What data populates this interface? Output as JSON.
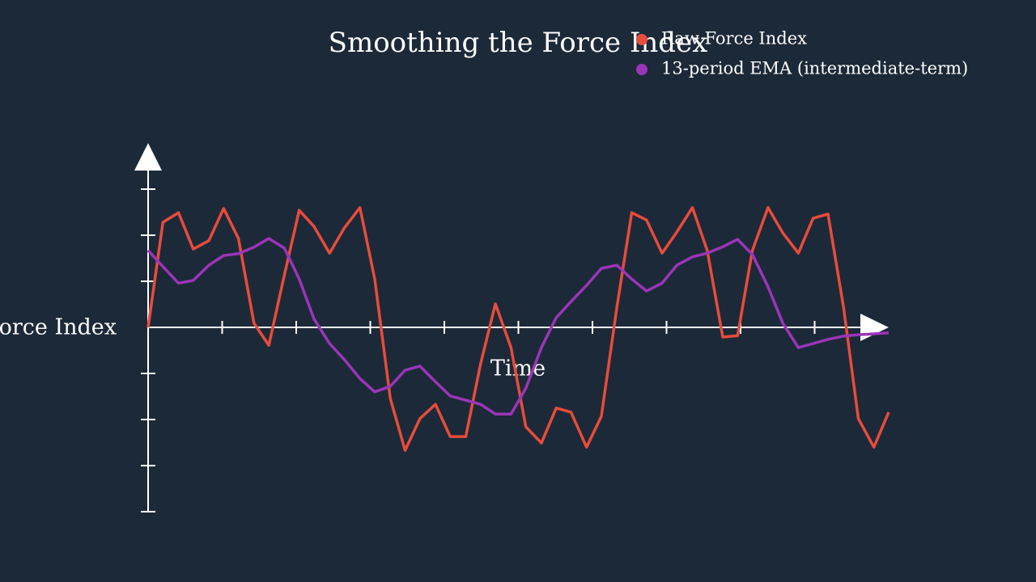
{
  "chart_data": {
    "type": "line",
    "title": "Smoothing the Force Index",
    "x_label": "Time",
    "y_label": "Force Index",
    "xlim": [
      0,
      10
    ],
    "xticks": [
      1,
      2,
      3,
      4,
      5,
      6,
      7,
      8,
      9
    ],
    "ylim": [
      -4,
      4
    ],
    "yticks": [
      -4,
      -3,
      -2,
      -1,
      1,
      2,
      3
    ],
    "legend": "upper right",
    "x": [
      0,
      0.2,
      0.41,
      0.61,
      0.82,
      1.02,
      1.22,
      1.43,
      1.63,
      1.84,
      2.04,
      2.24,
      2.45,
      2.65,
      2.86,
      3.06,
      3.27,
      3.47,
      3.67,
      3.88,
      4.08,
      4.29,
      4.49,
      4.69,
      4.9,
      5.1,
      5.31,
      5.51,
      5.71,
      5.92,
      6.12,
      6.33,
      6.53,
      6.73,
      6.94,
      7.14,
      7.35,
      7.55,
      7.76,
      7.96,
      8.16,
      8.37,
      8.57,
      8.78,
      8.98,
      9.18,
      9.39,
      9.59,
      9.8,
      10
    ],
    "series": [
      {
        "name": "Raw Force Index",
        "color": "#e74c3c",
        "values": [
          0,
          2.28,
          2.49,
          1.7,
          1.88,
          2.58,
          1.93,
          0.09,
          -0.39,
          1.14,
          2.54,
          2.19,
          1.61,
          2.16,
          2.6,
          1.05,
          -1.54,
          -2.67,
          -1.98,
          -1.67,
          -2.37,
          -2.37,
          -0.79,
          0.51,
          -0.44,
          -2.16,
          -2.51,
          -1.75,
          -1.84,
          -2.6,
          -1.93,
          0.44,
          2.49,
          2.33,
          1.61,
          2.07,
          2.6,
          1.67,
          -0.21,
          -0.18,
          1.67,
          2.6,
          2.05,
          1.61,
          2.37,
          2.46,
          0.44,
          -1.98,
          -2.6,
          -1.84
        ]
      },
      {
        "name": "13-period EMA (intermediate-term)",
        "color": "#9b35b8",
        "values": [
          1.67,
          1.32,
          0.96,
          1.02,
          1.35,
          1.56,
          1.6,
          1.74,
          1.93,
          1.72,
          1.05,
          0.18,
          -0.35,
          -0.7,
          -1.11,
          -1.4,
          -1.28,
          -0.93,
          -0.84,
          -1.18,
          -1.49,
          -1.58,
          -1.67,
          -1.88,
          -1.88,
          -1.32,
          -0.44,
          0.21,
          0.56,
          0.91,
          1.28,
          1.35,
          1.05,
          0.79,
          0.96,
          1.35,
          1.53,
          1.61,
          1.75,
          1.91,
          1.58,
          0.88,
          0.09,
          -0.44,
          -0.35,
          -0.26,
          -0.19,
          -0.16,
          -0.14,
          -0.12
        ]
      }
    ]
  }
}
